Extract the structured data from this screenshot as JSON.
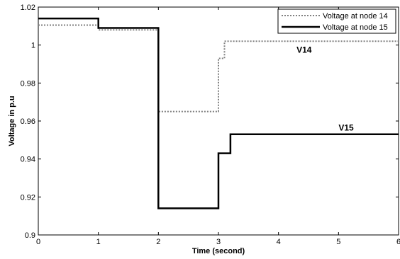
{
  "chart_data": {
    "type": "line",
    "title": "",
    "xlabel": "Time (second)",
    "ylabel": "Voltage in p.u",
    "xlim": [
      0,
      6
    ],
    "ylim": [
      0.9,
      1.02
    ],
    "xticks": [
      "0",
      "1",
      "2",
      "3",
      "4",
      "5",
      "6"
    ],
    "yticks": [
      "0.9",
      "0.92",
      "0.94",
      "0.96",
      "0.98",
      "1",
      "1.02"
    ],
    "grid": false,
    "legend_position": "top-right",
    "series": [
      {
        "name": "Voltage at node 14",
        "style": "dotted",
        "color": "#808080",
        "x": [
          0,
          1,
          1,
          2,
          2,
          3,
          3,
          3.1,
          3.1,
          6
        ],
        "y": [
          1.0105,
          1.0105,
          1.008,
          1.008,
          0.965,
          0.965,
          0.993,
          0.993,
          1.002,
          1.002
        ]
      },
      {
        "name": "Voltage at node 15",
        "style": "solid",
        "color": "#000000",
        "x": [
          0,
          1,
          1,
          2,
          2,
          3,
          3,
          3.2,
          3.2,
          6
        ],
        "y": [
          1.014,
          1.014,
          1.009,
          1.009,
          0.914,
          0.914,
          0.943,
          0.943,
          0.953,
          0.953
        ]
      }
    ],
    "annotations": [
      {
        "text": "V14",
        "x": 4.3,
        "y": 0.996
      },
      {
        "text": "V15",
        "x": 5.0,
        "y": 0.955
      }
    ]
  }
}
